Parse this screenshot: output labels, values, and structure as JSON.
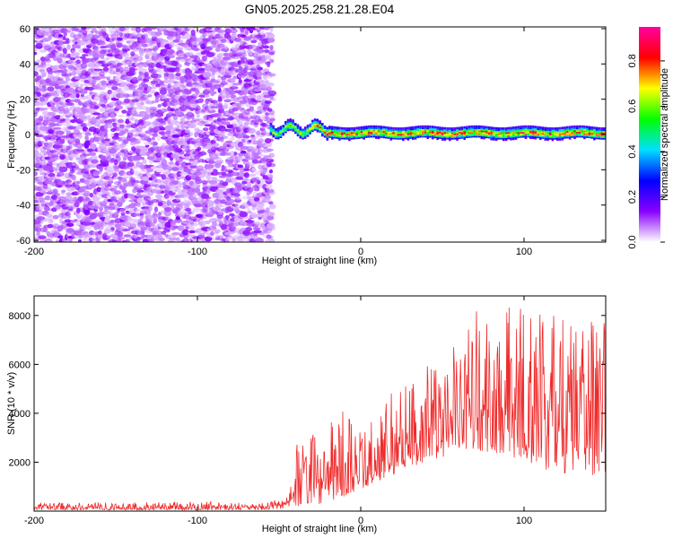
{
  "title": "GN05.2025.258.21.28.E04",
  "chart_data": [
    {
      "type": "heatmap",
      "xlabel": "Height of straight line (km)",
      "ylabel": "Frequency (Hz)",
      "xlim": [
        -200,
        150
      ],
      "ylim": [
        -61,
        61
      ],
      "x_ticks": [
        -200,
        -100,
        0,
        100
      ],
      "x_tick_labels": [
        "-200",
        "-100",
        "0",
        "100"
      ],
      "y_ticks": [
        60,
        40,
        20,
        0,
        -20,
        -40,
        -60
      ],
      "y_tick_labels": [
        "60",
        "40",
        "20",
        "0",
        "-20",
        "-40",
        "-60"
      ],
      "colorbar": {
        "label": "Normalized spectral amplitude",
        "range": [
          0,
          0.95
        ],
        "ticks": [
          0.0,
          0.2,
          0.4,
          0.6,
          0.8
        ],
        "tick_labels": [
          "0.0",
          "0.2",
          "0.4",
          "0.6",
          "0.8"
        ],
        "colormap": [
          "#ffffff",
          "#8a00ff",
          "#0000ff",
          "#00e0ff",
          "#00ff00",
          "#ffff00",
          "#ff0000",
          "#ff00a0"
        ]
      },
      "regions": [
        {
          "name": "broadband noise",
          "x_range": [
            -200,
            -55
          ],
          "freq_range": [
            -61,
            61
          ],
          "amplitude_range": [
            0.0,
            0.1
          ]
        },
        {
          "name": "narrow band signal",
          "x_range": [
            -55,
            150
          ],
          "center_freq": 1,
          "half_width": 5,
          "peak_amplitude": 0.92
        }
      ]
    },
    {
      "type": "line",
      "xlabel": "Height of straight line (km)",
      "ylabel": "SNR (10 * v/v)",
      "xlim": [
        -200,
        150
      ],
      "ylim": [
        0,
        8800
      ],
      "x_ticks": [
        -200,
        -100,
        0,
        100
      ],
      "x_tick_labels": [
        "-200",
        "-100",
        "0",
        "100"
      ],
      "y_ticks": [
        2000,
        4000,
        6000,
        8000
      ],
      "y_tick_labels": [
        "2000",
        "4000",
        "6000",
        "8000"
      ],
      "color": "#ef2b2b",
      "series": [
        {
          "name": "SNR envelope",
          "x": [
            -200,
            -150,
            -100,
            -60,
            -45,
            -40,
            -30,
            -20,
            -10,
            0,
            10,
            20,
            30,
            40,
            50,
            60,
            70,
            80,
            90,
            100,
            110,
            120,
            130,
            140,
            150
          ],
          "y_min": [
            50,
            50,
            50,
            50,
            100,
            200,
            200,
            400,
            600,
            900,
            1200,
            1500,
            1800,
            2000,
            2200,
            2400,
            2500,
            2400,
            2300,
            2000,
            1700,
            1600,
            1500,
            1400,
            1400
          ],
          "y_max": [
            350,
            350,
            400,
            350,
            600,
            2900,
            3100,
            3500,
            4200,
            3400,
            4300,
            5100,
            5300,
            6200,
            6600,
            6800,
            8600,
            8300,
            8400,
            8500,
            8100,
            8600,
            8300,
            8100,
            7700
          ]
        }
      ]
    }
  ]
}
